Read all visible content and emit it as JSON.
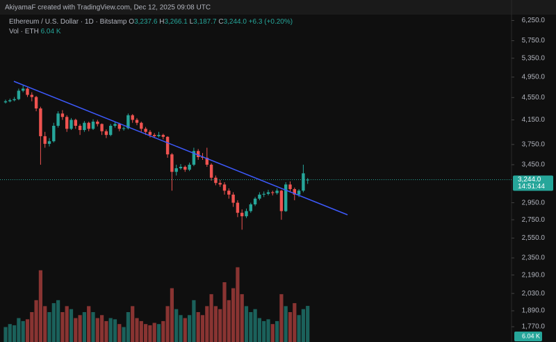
{
  "header": {
    "credit": "AkiyamaF created with TradingView.com, Dec 12, 2025 09:08 UTC",
    "symbol": "Ethereum / U.S. Dollar · 1D · Bitstamp",
    "ohlc": [
      {
        "key": "O",
        "value": "3,237.6"
      },
      {
        "key": "H",
        "value": "3,266.1"
      },
      {
        "key": "L",
        "value": "3,187.7"
      },
      {
        "key": "C",
        "value": "3,244.0"
      }
    ],
    "change": "+6.3 (+0.20%)",
    "vol_label": "Vol · ETH",
    "vol_value": "6.04 K"
  },
  "chart_data": {
    "type": "candlestick",
    "log_scale": true,
    "up_color": "#26a69a",
    "down_color": "#ef5350",
    "ylim": [
      1662,
      6800
    ],
    "yticks": [
      {
        "value": 6250,
        "label": "6,250.0"
      },
      {
        "value": 5750,
        "label": "5,750.0"
      },
      {
        "value": 5350,
        "label": "5,350.0"
      },
      {
        "value": 4950,
        "label": "4,950.0"
      },
      {
        "value": 4550,
        "label": "4,550.0"
      },
      {
        "value": 4150,
        "label": "4,150.0"
      },
      {
        "value": 3750,
        "label": "3,750.0"
      },
      {
        "value": 3450,
        "label": "3,450.0"
      },
      {
        "value": 2950,
        "label": "2,950.0"
      },
      {
        "value": 2750,
        "label": "2,750.0"
      },
      {
        "value": 2550,
        "label": "2,550.0"
      },
      {
        "value": 2350,
        "label": "2,350.0"
      },
      {
        "value": 2190,
        "label": "2,190.0"
      },
      {
        "value": 2030,
        "label": "2,030.0"
      },
      {
        "value": 1890,
        "label": "1,890.0"
      },
      {
        "value": 1770,
        "label": "1,770.0"
      }
    ],
    "last_price": {
      "value": 3244.0,
      "label": "3,244.0",
      "countdown": "14:51:44"
    },
    "candles": [
      [
        4460,
        4510,
        4440,
        4480
      ],
      [
        4480,
        4530,
        4460,
        4500
      ],
      [
        4500,
        4560,
        4480,
        4520
      ],
      [
        4520,
        4720,
        4500,
        4680
      ],
      [
        4680,
        4780,
        4650,
        4720
      ],
      [
        4720,
        4740,
        4560,
        4600
      ],
      [
        4600,
        4650,
        4480,
        4560
      ],
      [
        4560,
        4580,
        4300,
        4350
      ],
      [
        4350,
        4380,
        3450,
        3880
      ],
      [
        3880,
        3950,
        3700,
        3760
      ],
      [
        3760,
        3850,
        3720,
        3800
      ],
      [
        3800,
        4100,
        3780,
        4050
      ],
      [
        4050,
        4300,
        4020,
        4260
      ],
      [
        4260,
        4320,
        4150,
        4200
      ],
      [
        4200,
        4230,
        3950,
        4000
      ],
      [
        4000,
        4180,
        3980,
        4150
      ],
      [
        4150,
        4170,
        4000,
        4050
      ],
      [
        4050,
        4080,
        3900,
        3980
      ],
      [
        3980,
        4130,
        3950,
        4100
      ],
      [
        4100,
        4120,
        3960,
        4000
      ],
      [
        4000,
        4160,
        3980,
        4120
      ],
      [
        4120,
        4150,
        4040,
        4080
      ],
      [
        4080,
        4090,
        3900,
        3960
      ],
      [
        3960,
        3990,
        3850,
        3900
      ],
      [
        3900,
        4080,
        3880,
        4050
      ],
      [
        4050,
        4110,
        4020,
        4080
      ],
      [
        4080,
        4100,
        3960,
        4000
      ],
      [
        4000,
        4040,
        3970,
        4010
      ],
      [
        4010,
        4260,
        3990,
        4230
      ],
      [
        4230,
        4250,
        4100,
        4150
      ],
      [
        4150,
        4180,
        4060,
        4100
      ],
      [
        4100,
        4120,
        3940,
        4000
      ],
      [
        4000,
        4030,
        3900,
        3950
      ],
      [
        3950,
        3980,
        3860,
        3900
      ],
      [
        3900,
        3930,
        3850,
        3880
      ],
      [
        3880,
        3950,
        3860,
        3900
      ],
      [
        3900,
        3920,
        3830,
        3870
      ],
      [
        3870,
        3880,
        3550,
        3600
      ],
      [
        3600,
        3620,
        3100,
        3350
      ],
      [
        3350,
        3450,
        3300,
        3400
      ],
      [
        3400,
        3460,
        3380,
        3420
      ],
      [
        3420,
        3440,
        3350,
        3380
      ],
      [
        3380,
        3480,
        3360,
        3450
      ],
      [
        3450,
        3700,
        3430,
        3650
      ],
      [
        3650,
        3680,
        3520,
        3560
      ],
      [
        3560,
        3620,
        3520,
        3550
      ],
      [
        3550,
        3700,
        3420,
        3450
      ],
      [
        3450,
        3470,
        3230,
        3270
      ],
      [
        3270,
        3300,
        3170,
        3200
      ],
      [
        3200,
        3240,
        3150,
        3180
      ],
      [
        3180,
        3210,
        3050,
        3100
      ],
      [
        3100,
        3130,
        3000,
        3050
      ],
      [
        3050,
        3080,
        2900,
        2950
      ],
      [
        2950,
        2980,
        2780,
        2830
      ],
      [
        2830,
        2870,
        2640,
        2790
      ],
      [
        2790,
        2880,
        2770,
        2850
      ],
      [
        2850,
        2950,
        2830,
        2930
      ],
      [
        2930,
        3020,
        2910,
        3000
      ],
      [
        3000,
        3080,
        2980,
        3050
      ],
      [
        3050,
        3090,
        3020,
        3060
      ],
      [
        3060,
        3110,
        3040,
        3080
      ],
      [
        3080,
        3100,
        3040,
        3070
      ],
      [
        3070,
        3130,
        3050,
        3100
      ],
      [
        3100,
        3110,
        2750,
        2850
      ],
      [
        2850,
        3210,
        2840,
        3180
      ],
      [
        3180,
        3220,
        3080,
        3120
      ],
      [
        3120,
        3140,
        2980,
        3050
      ],
      [
        3050,
        3120,
        3020,
        3100
      ],
      [
        3100,
        3450,
        3080,
        3330
      ],
      [
        3237.6,
        3266.1,
        3187.7,
        3244.0
      ]
    ],
    "volume_lim": [
      0,
      25
    ],
    "volume": [
      2.5,
      3,
      2.8,
      4,
      3.5,
      3.8,
      5,
      7,
      12,
      6,
      5,
      6.5,
      7,
      5,
      6,
      5.5,
      4,
      4.5,
      5,
      6,
      5,
      4,
      4.5,
      3.5,
      4,
      3.8,
      3,
      2.5,
      5,
      6,
      4,
      3.5,
      3,
      2.8,
      3.2,
      3,
      3.5,
      6,
      9,
      5.5,
      4.5,
      4,
      4.5,
      7,
      5,
      4.5,
      6,
      8,
      6,
      5.5,
      10,
      7,
      9,
      12.5,
      8,
      6,
      5,
      5.5,
      4,
      3.5,
      3.8,
      3,
      3.5,
      8,
      6,
      5,
      6.5,
      4.5,
      5.5,
      6.04
    ]
  }
}
